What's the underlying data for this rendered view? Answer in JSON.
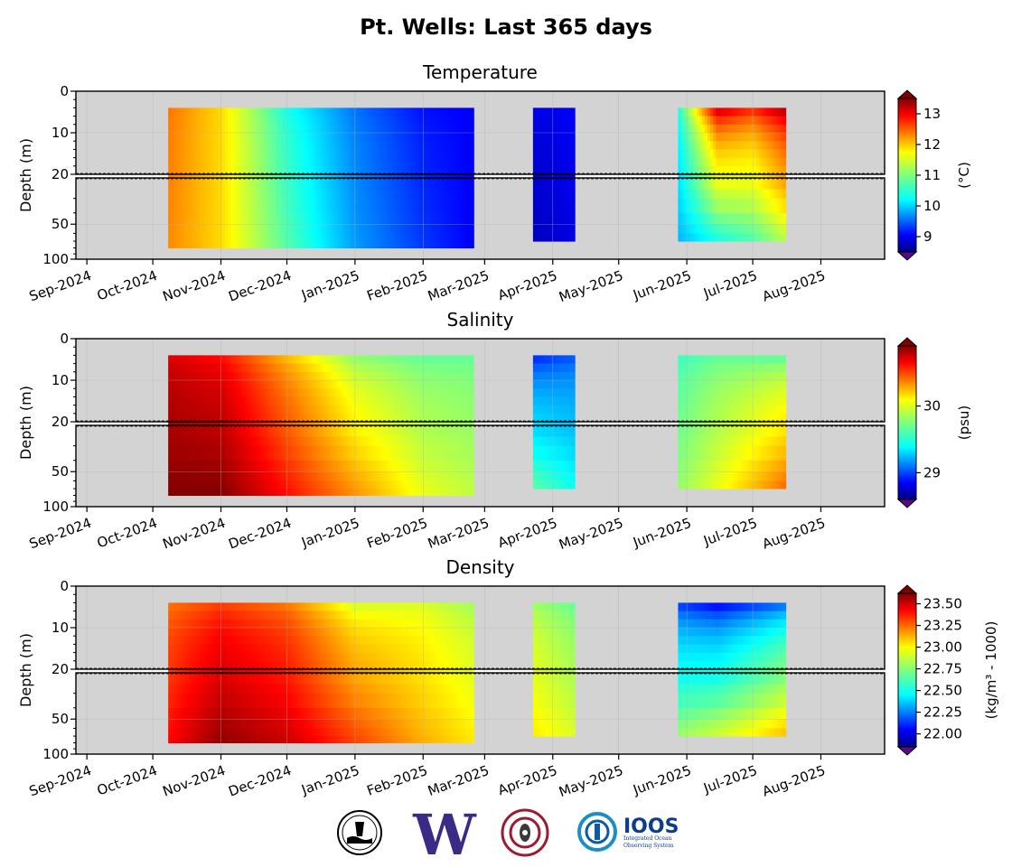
{
  "figure": {
    "title": "Pt. Wells: Last 365 days"
  },
  "colors": {
    "background": "#ffffff",
    "panel_background": "#d3d3d3",
    "no_data": "#d3d3d3",
    "colormap": "jet"
  },
  "x_axis": {
    "ticks": [
      "Sep-2024",
      "Oct-2024",
      "Nov-2024",
      "Dec-2024",
      "Jan-2025",
      "Feb-2025",
      "Mar-2025",
      "Apr-2025",
      "May-2025",
      "Jun-2025",
      "Jul-2025",
      "Aug-2025"
    ],
    "range": [
      "2024-08-27",
      "2025-08-30"
    ]
  },
  "chart_data": [
    {
      "type": "heatmap",
      "title": "Temperature",
      "ylabel": "Depth (m)",
      "yticks_upper": [
        "0",
        "10",
        "20"
      ],
      "yticks_lower": [
        "50",
        "100"
      ],
      "y_upper_range_m": [
        0,
        20
      ],
      "y_lower_range_m": [
        20,
        100
      ],
      "y_lower_scale": "log",
      "colorbar": {
        "label": "(°C)",
        "ticks": [
          "9",
          "10",
          "11",
          "12",
          "13"
        ],
        "range": [
          8.5,
          13.5
        ],
        "extend": "both"
      },
      "data_blocks": [
        {
          "start": "2024-10-08",
          "end": "2025-02-24",
          "depth_max_m": 80
        },
        {
          "start": "2025-03-23",
          "end": "2025-04-11",
          "depth_max_m": 70
        },
        {
          "start": "2025-05-28",
          "end": "2025-07-16",
          "depth_max_m": 70
        }
      ],
      "profile_dates": [
        "2024-10-08",
        "2024-11-01",
        "2024-12-01",
        "2025-01-01",
        "2025-02-01",
        "2025-02-24",
        "2025-03-23",
        "2025-04-11",
        "2025-05-28",
        "2025-06-15",
        "2025-07-01",
        "2025-07-16"
      ],
      "surface_values": [
        12.3,
        11.8,
        10.5,
        9.7,
        9.2,
        9.1,
        9.0,
        9.1,
        10.5,
        13.0,
        12.6,
        13.2
      ],
      "bottom_values": [
        12.2,
        11.8,
        10.8,
        9.9,
        9.4,
        9.1,
        8.8,
        9.0,
        10.0,
        10.4,
        10.7,
        11.2
      ]
    },
    {
      "type": "heatmap",
      "title": "Salinity",
      "ylabel": "Depth (m)",
      "yticks_upper": [
        "0",
        "10",
        "20"
      ],
      "yticks_lower": [
        "50",
        "100"
      ],
      "y_upper_range_m": [
        0,
        20
      ],
      "y_lower_range_m": [
        20,
        100
      ],
      "y_lower_scale": "log",
      "colorbar": {
        "label": "(psu)",
        "ticks": [
          "29",
          "30"
        ],
        "range": [
          28.6,
          30.9
        ],
        "extend": "both"
      },
      "data_blocks": [
        {
          "start": "2024-10-08",
          "end": "2025-02-24",
          "depth_max_m": 80
        },
        {
          "start": "2025-03-23",
          "end": "2025-04-11",
          "depth_max_m": 70
        },
        {
          "start": "2025-05-28",
          "end": "2025-07-16",
          "depth_max_m": 70
        }
      ],
      "profile_dates": [
        "2024-10-08",
        "2024-11-01",
        "2024-12-01",
        "2025-01-01",
        "2025-02-01",
        "2025-02-24",
        "2025-03-23",
        "2025-04-11",
        "2025-05-28",
        "2025-06-15",
        "2025-07-01",
        "2025-07-16"
      ],
      "surface_values": [
        30.7,
        30.6,
        30.2,
        29.8,
        29.7,
        29.7,
        29.0,
        29.1,
        29.6,
        29.7,
        29.7,
        29.7
      ],
      "bottom_values": [
        30.9,
        30.9,
        30.6,
        30.3,
        30.0,
        29.9,
        29.7,
        29.5,
        29.8,
        30.0,
        30.2,
        30.4
      ]
    },
    {
      "type": "heatmap",
      "title": "Density",
      "ylabel": "Depth (m)",
      "yticks_upper": [
        "0",
        "10",
        "20"
      ],
      "yticks_lower": [
        "50",
        "100"
      ],
      "y_upper_range_m": [
        0,
        20
      ],
      "y_lower_range_m": [
        20,
        100
      ],
      "y_lower_scale": "log",
      "colorbar": {
        "label": "(kg/m³ - 1000)",
        "ticks": [
          "22.00",
          "22.25",
          "22.50",
          "22.75",
          "23.00",
          "23.25",
          "23.50"
        ],
        "range": [
          21.85,
          23.62
        ],
        "extend": "both"
      },
      "data_blocks": [
        {
          "start": "2024-10-08",
          "end": "2025-02-24",
          "depth_max_m": 80
        },
        {
          "start": "2025-03-23",
          "end": "2025-04-11",
          "depth_max_m": 70
        },
        {
          "start": "2025-05-28",
          "end": "2025-07-16",
          "depth_max_m": 70
        }
      ],
      "profile_dates": [
        "2024-10-08",
        "2024-11-01",
        "2024-12-01",
        "2025-01-01",
        "2025-02-01",
        "2025-02-24",
        "2025-03-23",
        "2025-04-11",
        "2025-05-28",
        "2025-06-15",
        "2025-07-01",
        "2025-07-16"
      ],
      "surface_values": [
        23.2,
        23.3,
        23.2,
        22.9,
        22.9,
        22.8,
        22.8,
        22.7,
        22.2,
        22.1,
        22.2,
        22.3
      ],
      "bottom_values": [
        23.4,
        23.6,
        23.5,
        23.3,
        23.1,
        23.0,
        23.0,
        22.9,
        22.8,
        22.9,
        23.0,
        23.1
      ]
    }
  ],
  "logos": [
    {
      "name": "nanoos-seal-logo"
    },
    {
      "name": "uw-logo",
      "text": "W"
    },
    {
      "name": "salish-art-logo"
    },
    {
      "name": "ioos-logo",
      "text": "IOOS",
      "subtext": "Integrated Ocean Observing System"
    }
  ]
}
